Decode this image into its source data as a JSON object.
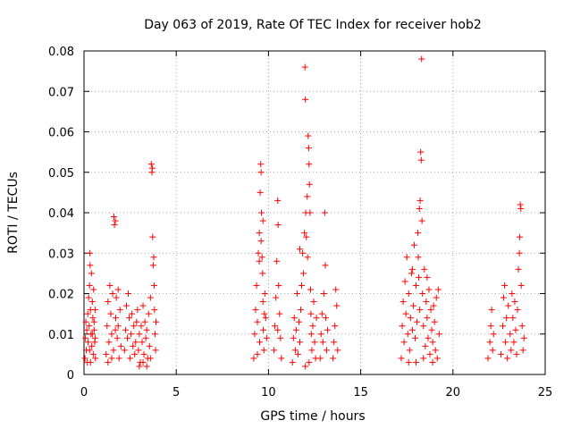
{
  "chart_data": {
    "type": "scatter",
    "title": "Day 063 of 2019, Rate Of TEC Index for receiver hob2",
    "xlabel": "GPS time / hours",
    "ylabel": "ROTI / TECUs",
    "xlim": [
      0,
      25
    ],
    "ylim": [
      0,
      0.08
    ],
    "xticks": [
      0,
      5,
      10,
      15,
      20,
      25
    ],
    "xtick_labels": [
      "0",
      "5",
      "10",
      "15",
      "20",
      "25"
    ],
    "yticks": [
      0,
      0.01,
      0.02,
      0.03,
      0.04,
      0.05,
      0.06,
      0.07,
      0.08
    ],
    "ytick_labels": [
      "0",
      "0.01",
      "0.02",
      "0.03",
      "0.04",
      "0.05",
      "0.06",
      "0.07",
      "0.08"
    ],
    "grid": true,
    "marker": "+",
    "marker_color": "#ff0000",
    "series": [
      {
        "name": "ROTI",
        "points": [
          [
            0.05,
            0.004
          ],
          [
            0.08,
            0.009
          ],
          [
            0.1,
            0.013
          ],
          [
            0.12,
            0.006
          ],
          [
            0.15,
            0.011
          ],
          [
            0.18,
            0.003
          ],
          [
            0.2,
            0.015
          ],
          [
            0.22,
            0.008
          ],
          [
            0.25,
            0.019
          ],
          [
            0.28,
            0.012
          ],
          [
            0.3,
            0.022
          ],
          [
            0.32,
            0.03
          ],
          [
            0.33,
            0.027
          ],
          [
            0.35,
            0.016
          ],
          [
            0.38,
            0.01
          ],
          [
            0.4,
            0.025
          ],
          [
            0.42,
            0.007
          ],
          [
            0.45,
            0.018
          ],
          [
            0.48,
            0.014
          ],
          [
            0.5,
            0.005
          ],
          [
            0.52,
            0.021
          ],
          [
            0.55,
            0.011
          ],
          [
            0.58,
            0.008
          ],
          [
            0.6,
            0.016
          ],
          [
            0.62,
            0.004
          ],
          [
            0.3,
            0.006
          ],
          [
            0.35,
            0.003
          ],
          [
            0.45,
            0.01
          ],
          [
            0.55,
            0.013
          ],
          [
            0.6,
            0.009
          ],
          [
            1.2,
            0.005
          ],
          [
            1.25,
            0.012
          ],
          [
            1.3,
            0.018
          ],
          [
            1.35,
            0.008
          ],
          [
            1.4,
            0.022
          ],
          [
            1.45,
            0.015
          ],
          [
            1.5,
            0.01
          ],
          [
            1.55,
            0.02
          ],
          [
            1.6,
            0.006
          ],
          [
            1.62,
            0.039
          ],
          [
            1.65,
            0.037
          ],
          [
            1.7,
            0.038
          ],
          [
            1.72,
            0.014
          ],
          [
            1.75,
            0.019
          ],
          [
            1.8,
            0.009
          ],
          [
            1.85,
            0.012
          ],
          [
            1.9,
            0.004
          ],
          [
            1.95,
            0.016
          ],
          [
            2.0,
            0.007
          ],
          [
            1.3,
            0.003
          ],
          [
            1.5,
            0.004
          ],
          [
            1.7,
            0.011
          ],
          [
            1.85,
            0.021
          ],
          [
            2.2,
            0.006
          ],
          [
            2.25,
            0.011
          ],
          [
            2.3,
            0.017
          ],
          [
            2.35,
            0.009
          ],
          [
            2.4,
            0.02
          ],
          [
            2.45,
            0.014
          ],
          [
            2.5,
            0.004
          ],
          [
            2.55,
            0.01
          ],
          [
            2.6,
            0.015
          ],
          [
            2.65,
            0.007
          ],
          [
            2.7,
            0.012
          ],
          [
            2.75,
            0.005
          ],
          [
            2.8,
            0.008
          ],
          [
            2.85,
            0.013
          ],
          [
            2.9,
            0.016
          ],
          [
            2.95,
            0.006
          ],
          [
            3.0,
            0.01
          ],
          [
            3.05,
            0.003
          ],
          [
            3.1,
            0.012
          ],
          [
            3.15,
            0.008
          ],
          [
            3.2,
            0.017
          ],
          [
            3.25,
            0.005
          ],
          [
            3.3,
            0.013
          ],
          [
            3.35,
            0.009
          ],
          [
            3.4,
            0.011
          ],
          [
            3.45,
            0.004
          ],
          [
            3.5,
            0.015
          ],
          [
            3.55,
            0.007
          ],
          [
            3.6,
            0.019
          ],
          [
            3.65,
            0.052
          ],
          [
            3.68,
            0.05
          ],
          [
            3.7,
            0.051
          ],
          [
            3.72,
            0.034
          ],
          [
            3.75,
            0.027
          ],
          [
            3.78,
            0.029
          ],
          [
            3.8,
            0.022
          ],
          [
            3.82,
            0.016
          ],
          [
            3.85,
            0.01
          ],
          [
            3.88,
            0.006
          ],
          [
            3.9,
            0.013
          ],
          [
            3.0,
            0.002
          ],
          [
            3.2,
            0.003
          ],
          [
            3.4,
            0.002
          ],
          [
            3.6,
            0.004
          ],
          [
            9.2,
            0.004
          ],
          [
            9.25,
            0.01
          ],
          [
            9.3,
            0.016
          ],
          [
            9.35,
            0.022
          ],
          [
            9.4,
            0.013
          ],
          [
            9.45,
            0.03
          ],
          [
            9.5,
            0.035
          ],
          [
            9.52,
            0.008
          ],
          [
            9.55,
            0.045
          ],
          [
            9.58,
            0.052
          ],
          [
            9.6,
            0.05
          ],
          [
            9.62,
            0.04
          ],
          [
            9.65,
            0.029
          ],
          [
            9.68,
            0.025
          ],
          [
            9.7,
            0.018
          ],
          [
            9.72,
            0.011
          ],
          [
            9.75,
            0.006
          ],
          [
            9.78,
            0.015
          ],
          [
            9.8,
            0.02
          ],
          [
            9.85,
            0.014
          ],
          [
            9.9,
            0.009
          ],
          [
            9.4,
            0.005
          ],
          [
            9.5,
            0.028
          ],
          [
            9.6,
            0.033
          ],
          [
            9.7,
            0.038
          ],
          [
            10.3,
            0.006
          ],
          [
            10.35,
            0.012
          ],
          [
            10.4,
            0.019
          ],
          [
            10.45,
            0.028
          ],
          [
            10.5,
            0.043
          ],
          [
            10.52,
            0.037
          ],
          [
            10.55,
            0.022
          ],
          [
            10.6,
            0.015
          ],
          [
            10.65,
            0.009
          ],
          [
            10.7,
            0.004
          ],
          [
            10.5,
            0.011
          ],
          [
            11.3,
            0.003
          ],
          [
            11.35,
            0.009
          ],
          [
            11.4,
            0.014
          ],
          [
            11.45,
            0.006
          ],
          [
            11.5,
            0.011
          ],
          [
            11.55,
            0.02
          ],
          [
            11.6,
            0.005
          ],
          [
            11.65,
            0.013
          ],
          [
            11.7,
            0.008
          ],
          [
            11.75,
            0.016
          ],
          [
            11.8,
            0.022
          ],
          [
            11.85,
            0.03
          ],
          [
            11.9,
            0.025
          ],
          [
            11.95,
            0.035
          ],
          [
            11.98,
            0.076
          ],
          [
            12.0,
            0.068
          ],
          [
            12.02,
            0.04
          ],
          [
            12.05,
            0.034
          ],
          [
            12.1,
            0.044
          ],
          [
            12.12,
            0.029
          ],
          [
            12.15,
            0.059
          ],
          [
            12.18,
            0.056
          ],
          [
            12.2,
            0.052
          ],
          [
            12.22,
            0.047
          ],
          [
            12.25,
            0.04
          ],
          [
            12.28,
            0.021
          ],
          [
            12.3,
            0.015
          ],
          [
            12.32,
            0.01
          ],
          [
            12.35,
            0.006
          ],
          [
            12.4,
            0.012
          ],
          [
            12.45,
            0.018
          ],
          [
            12.5,
            0.008
          ],
          [
            12.55,
            0.004
          ],
          [
            12.6,
            0.014
          ],
          [
            12.0,
            0.002
          ],
          [
            12.2,
            0.003
          ],
          [
            11.7,
            0.031
          ],
          [
            12.8,
            0.004
          ],
          [
            12.85,
            0.01
          ],
          [
            12.9,
            0.015
          ],
          [
            12.95,
            0.008
          ],
          [
            13.0,
            0.02
          ],
          [
            13.05,
            0.04
          ],
          [
            13.08,
            0.027
          ],
          [
            13.1,
            0.014
          ],
          [
            13.15,
            0.006
          ],
          [
            13.2,
            0.011
          ],
          [
            13.5,
            0.004
          ],
          [
            13.55,
            0.008
          ],
          [
            13.6,
            0.012
          ],
          [
            13.65,
            0.021
          ],
          [
            13.7,
            0.017
          ],
          [
            13.75,
            0.006
          ],
          [
            17.2,
            0.004
          ],
          [
            17.25,
            0.012
          ],
          [
            17.3,
            0.018
          ],
          [
            17.35,
            0.008
          ],
          [
            17.4,
            0.023
          ],
          [
            17.45,
            0.015
          ],
          [
            17.5,
            0.029
          ],
          [
            17.55,
            0.01
          ],
          [
            17.6,
            0.02
          ],
          [
            17.65,
            0.006
          ],
          [
            17.7,
            0.014
          ],
          [
            17.75,
            0.025
          ],
          [
            17.8,
            0.011
          ],
          [
            17.85,
            0.017
          ],
          [
            17.9,
            0.032
          ],
          [
            17.95,
            0.009
          ],
          [
            18.0,
            0.022
          ],
          [
            18.05,
            0.013
          ],
          [
            18.1,
            0.035
          ],
          [
            18.12,
            0.029
          ],
          [
            18.15,
            0.024
          ],
          [
            18.18,
            0.041
          ],
          [
            18.2,
            0.016
          ],
          [
            18.22,
            0.043
          ],
          [
            18.25,
            0.055
          ],
          [
            18.28,
            0.053
          ],
          [
            18.3,
            0.078
          ],
          [
            18.32,
            0.038
          ],
          [
            18.35,
            0.02
          ],
          [
            18.4,
            0.012
          ],
          [
            18.45,
            0.026
          ],
          [
            18.5,
            0.007
          ],
          [
            18.55,
            0.018
          ],
          [
            18.6,
            0.014
          ],
          [
            18.65,
            0.009
          ],
          [
            18.7,
            0.021
          ],
          [
            18.75,
            0.005
          ],
          [
            18.8,
            0.016
          ],
          [
            18.85,
            0.011
          ],
          [
            18.9,
            0.008
          ],
          [
            18.95,
            0.017
          ],
          [
            19.0,
            0.013
          ],
          [
            19.05,
            0.006
          ],
          [
            19.1,
            0.019
          ],
          [
            19.15,
            0.004
          ],
          [
            19.2,
            0.021
          ],
          [
            19.25,
            0.01
          ],
          [
            17.6,
            0.003
          ],
          [
            18.0,
            0.003
          ],
          [
            18.4,
            0.004
          ],
          [
            18.9,
            0.003
          ],
          [
            17.8,
            0.026
          ],
          [
            18.6,
            0.024
          ],
          [
            21.9,
            0.004
          ],
          [
            22.0,
            0.008
          ],
          [
            22.05,
            0.012
          ],
          [
            22.1,
            0.016
          ],
          [
            22.15,
            0.006
          ],
          [
            22.2,
            0.01
          ],
          [
            22.6,
            0.005
          ],
          [
            22.7,
            0.012
          ],
          [
            22.75,
            0.019
          ],
          [
            22.8,
            0.022
          ],
          [
            22.85,
            0.008
          ],
          [
            22.9,
            0.014
          ],
          [
            22.95,
            0.004
          ],
          [
            23.0,
            0.017
          ],
          [
            23.1,
            0.01
          ],
          [
            23.15,
            0.006
          ],
          [
            23.2,
            0.02
          ],
          [
            23.25,
            0.014
          ],
          [
            23.3,
            0.008
          ],
          [
            23.35,
            0.018
          ],
          [
            23.4,
            0.011
          ],
          [
            23.45,
            0.005
          ],
          [
            23.5,
            0.016
          ],
          [
            23.55,
            0.026
          ],
          [
            23.6,
            0.03
          ],
          [
            23.62,
            0.034
          ],
          [
            23.65,
            0.042
          ],
          [
            23.68,
            0.041
          ],
          [
            23.7,
            0.022
          ],
          [
            23.75,
            0.012
          ],
          [
            23.8,
            0.006
          ],
          [
            23.85,
            0.009
          ]
        ]
      }
    ]
  }
}
